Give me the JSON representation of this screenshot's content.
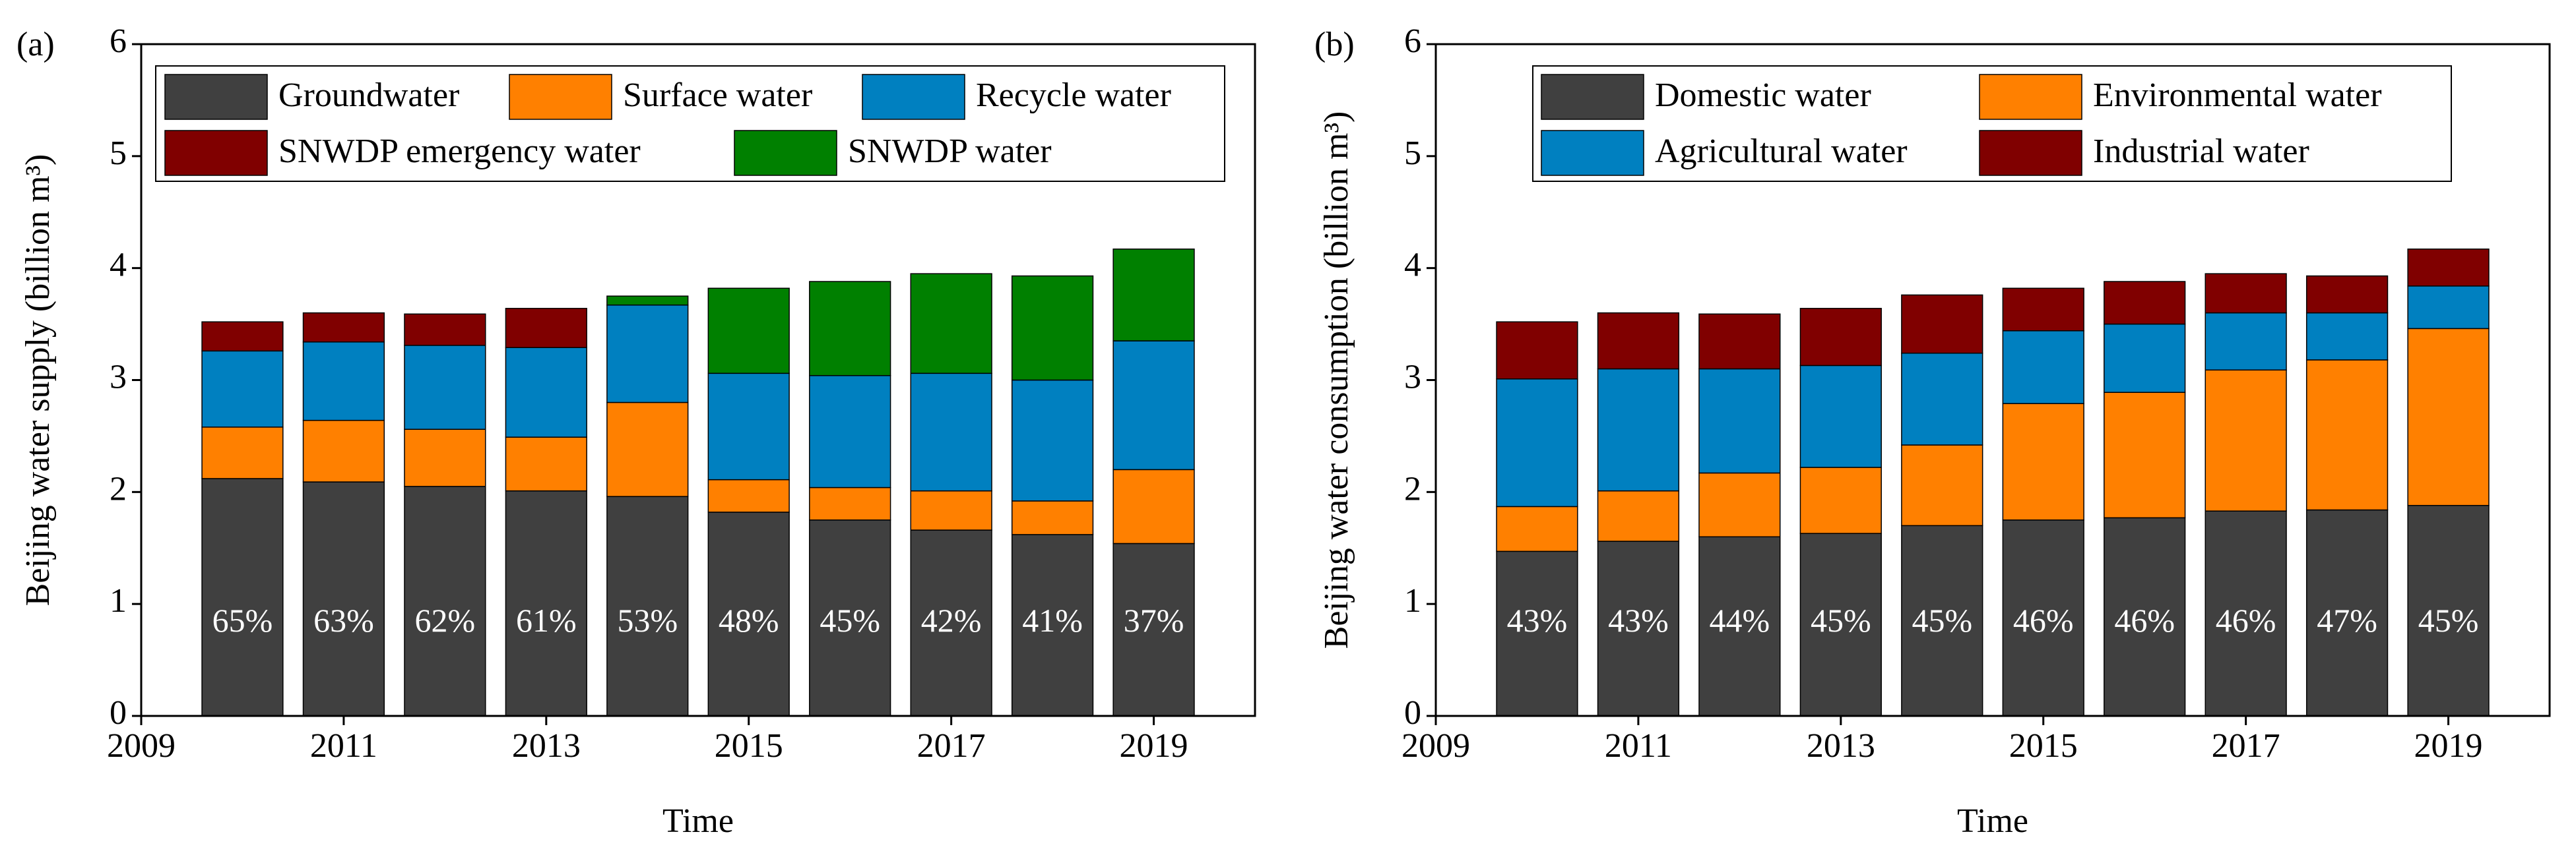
{
  "chart_data": [
    {
      "type": "bar",
      "stacked": true,
      "panel_label": "(a)",
      "xlabel": "Time",
      "ylabel": "Beijing water supply (billion m³)",
      "x": [
        2010,
        2011,
        2012,
        2013,
        2014,
        2015,
        2016,
        2017,
        2018,
        2019
      ],
      "xlim": [
        2009,
        2020
      ],
      "xticks": [
        2009,
        2011,
        2013,
        2015,
        2017,
        2019
      ],
      "ylim": [
        0,
        6
      ],
      "yticks": [
        0,
        1,
        2,
        3,
        4,
        5,
        6
      ],
      "series": [
        {
          "name": "Groundwater",
          "color": "#404040",
          "values": [
            2.12,
            2.09,
            2.05,
            2.01,
            1.96,
            1.82,
            1.75,
            1.66,
            1.62,
            1.54
          ]
        },
        {
          "name": "Surface water",
          "color": "#ff8000",
          "values": [
            0.46,
            0.55,
            0.51,
            0.48,
            0.84,
            0.29,
            0.29,
            0.35,
            0.3,
            0.66
          ]
        },
        {
          "name": "Recycle water",
          "color": "#0080c0",
          "values": [
            0.68,
            0.7,
            0.75,
            0.8,
            0.87,
            0.95,
            1.0,
            1.05,
            1.08,
            1.15
          ]
        },
        {
          "name": "SNWDP emergency water",
          "color": "#800000",
          "values": [
            0.26,
            0.26,
            0.28,
            0.35,
            0,
            0,
            0,
            0,
            0,
            0
          ]
        },
        {
          "name": "SNWDP water",
          "color": "#008000",
          "values": [
            0,
            0,
            0,
            0,
            0.08,
            0.76,
            0.84,
            0.89,
            0.93,
            0.82
          ]
        }
      ],
      "annotations": [
        "65%",
        "63%",
        "62%",
        "61%",
        "53%",
        "48%",
        "45%",
        "42%",
        "41%",
        "37%"
      ]
    },
    {
      "type": "bar",
      "stacked": true,
      "panel_label": "(b)",
      "xlabel": "Time",
      "ylabel": "Beijing water consumption (billion m³)",
      "x": [
        2010,
        2011,
        2012,
        2013,
        2014,
        2015,
        2016,
        2017,
        2018,
        2019
      ],
      "xlim": [
        2009,
        2020
      ],
      "xticks": [
        2009,
        2011,
        2013,
        2015,
        2017,
        2019
      ],
      "ylim": [
        0,
        6
      ],
      "yticks": [
        0,
        1,
        2,
        3,
        4,
        5,
        6
      ],
      "series": [
        {
          "name": "Domestic water",
          "color": "#404040",
          "values": [
            1.47,
            1.56,
            1.6,
            1.63,
            1.7,
            1.75,
            1.77,
            1.83,
            1.84,
            1.88
          ]
        },
        {
          "name": "Environmental water",
          "color": "#ff8000",
          "values": [
            0.4,
            0.45,
            0.57,
            0.59,
            0.72,
            1.04,
            1.12,
            1.26,
            1.34,
            1.58
          ]
        },
        {
          "name": "Agricultural water",
          "color": "#0080c0",
          "values": [
            1.14,
            1.09,
            0.93,
            0.91,
            0.82,
            0.65,
            0.61,
            0.51,
            0.42,
            0.38
          ]
        },
        {
          "name": "Industrial water",
          "color": "#800000",
          "values": [
            0.51,
            0.5,
            0.49,
            0.51,
            0.52,
            0.38,
            0.38,
            0.35,
            0.33,
            0.33
          ]
        }
      ],
      "annotations": [
        "43%",
        "43%",
        "44%",
        "45%",
        "45%",
        "46%",
        "46%",
        "46%",
        "47%",
        "45%"
      ]
    }
  ]
}
